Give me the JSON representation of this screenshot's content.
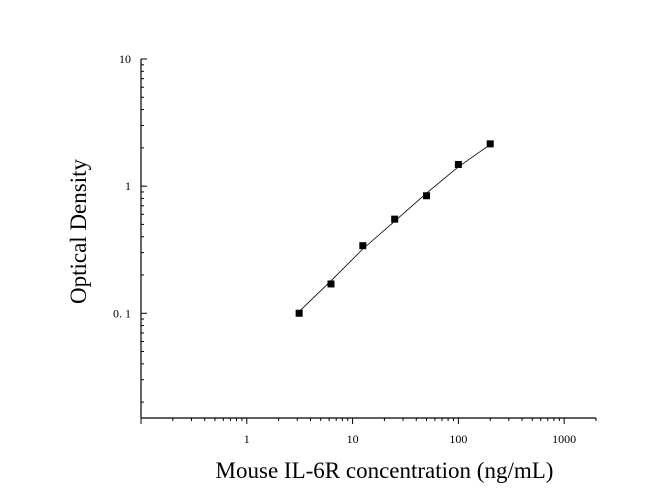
{
  "chart_data": {
    "type": "scatter",
    "title": "",
    "xlabel": "Mouse IL-6R concentration (ng/mL)",
    "ylabel": "Optical Density",
    "x_scale": "log",
    "y_scale": "log",
    "xlim": [
      0.1,
      2000
    ],
    "ylim": [
      0.015,
      10
    ],
    "x_ticks": [
      1,
      10,
      100,
      1000
    ],
    "x_tick_labels": [
      "1",
      "10",
      "100",
      "1000"
    ],
    "y_ticks": [
      0.1,
      1,
      10
    ],
    "y_tick_labels": [
      "0. 1",
      "1",
      "10"
    ],
    "grid": false,
    "legend": "none",
    "marker": "square",
    "color": "#000000",
    "series": [
      {
        "x": [
          3.125,
          6.25,
          12.5,
          25,
          50,
          100,
          200
        ],
        "y": [
          0.1,
          0.17,
          0.34,
          0.55,
          0.84,
          1.48,
          2.15
        ]
      }
    ],
    "fit_curve": {
      "x": [
        3.125,
        6.25,
        12.5,
        25,
        50,
        100,
        200
      ],
      "y": [
        0.103,
        0.18,
        0.32,
        0.53,
        0.88,
        1.42,
        2.12
      ]
    }
  }
}
